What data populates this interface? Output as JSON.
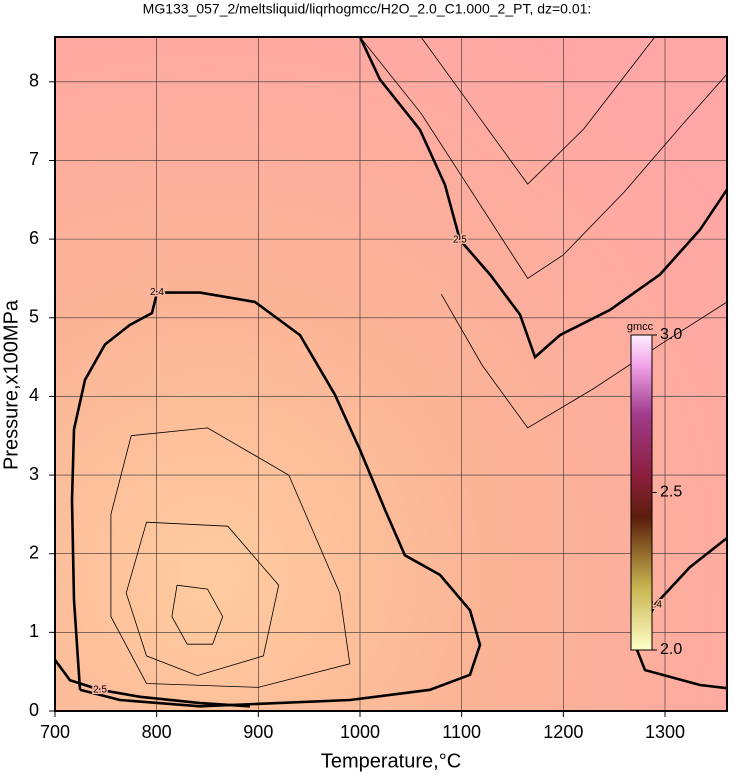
{
  "chart_data": {
    "type": "contour",
    "title": "MG133_057_2/meltsliquid/liqrhogmcc/H2O_2.0_C1.000_2_PT, dz=0.01:",
    "x_label": "Temperature,°C",
    "y_label": "Pressure,x100MPa",
    "xlim": [
      700,
      1361
    ],
    "ylim": [
      0,
      8.57
    ],
    "xticks": [
      700,
      800,
      900,
      1000,
      1100,
      1200,
      1300
    ],
    "yticks": [
      0,
      1,
      2,
      3,
      4,
      5,
      6,
      7,
      8
    ],
    "grid": true,
    "contours": [
      {
        "level": 2.4,
        "bold": true,
        "x": [
          724.6,
          718.7,
          716.7,
          718.7,
          729.5,
          749.2,
          773.8,
          795.4,
          800.3,
          842.6,
          896.7,
          941.0,
          975.4,
          1000,
          1024.6,
          1044.2,
          1078.7,
          1108.2,
          1118.0,
          1108.2,
          1068.8,
          990.2,
          842.6,
          763.9,
          724.6
        ],
        "y": [
          0.27,
          1.41,
          2.68,
          3.58,
          4.21,
          4.66,
          4.91,
          5.06,
          5.32,
          5.32,
          5.2,
          4.78,
          4.02,
          3.32,
          2.56,
          1.98,
          1.73,
          1.28,
          0.84,
          0.46,
          0.27,
          0.14,
          0.06,
          0.14,
          0.27
        ]
      },
      {
        "level": 2.5,
        "bold": true,
        "x": [
          1000,
          1019.7,
          1059,
          1083.6,
          1098.3,
          1127.9,
          1157.4,
          1172.1,
          1196.7,
          1245.9,
          1295.1,
          1334.4,
          1361
        ],
        "y": [
          8.57,
          8.03,
          7.39,
          6.69,
          5.99,
          5.55,
          5.04,
          4.5,
          4.78,
          5.1,
          5.55,
          6.12,
          6.63
        ]
      },
      {
        "level": 2.4,
        "bold": true,
        "x": [
          1361,
          1324.6,
          1290.2,
          1270.5,
          1280.3,
          1334.4,
          1361
        ],
        "y": [
          2.2,
          1.83,
          1.35,
          0.84,
          0.52,
          0.33,
          0.29
        ]
      },
      {
        "level": 2.5,
        "bold": true,
        "x": [
          700,
          714.8,
          744.3,
          783.7,
          842.6,
          891.8
        ],
        "y": [
          0.65,
          0.39,
          0.27,
          0.18,
          0.1,
          0.06
        ]
      },
      {
        "bold": false,
        "x": [
          820,
          850,
          865,
          855,
          830,
          815,
          820
        ],
        "y": [
          1.6,
          1.55,
          1.2,
          0.85,
          0.85,
          1.2,
          1.6
        ]
      },
      {
        "bold": false,
        "x": [
          790,
          870,
          920,
          905,
          840,
          790,
          770,
          790
        ],
        "y": [
          2.4,
          2.35,
          1.6,
          0.7,
          0.45,
          0.7,
          1.5,
          2.4
        ]
      },
      {
        "bold": false,
        "x": [
          775,
          850,
          930,
          980,
          990,
          900,
          790,
          755,
          755,
          775
        ],
        "y": [
          3.5,
          3.6,
          3.0,
          1.5,
          0.6,
          0.3,
          0.35,
          1.2,
          2.5,
          3.5
        ]
      },
      {
        "bold": false,
        "x": [
          1000,
          1060,
          1100,
          1140,
          1165,
          1200,
          1260,
          1320,
          1361
        ],
        "y": [
          8.57,
          7.6,
          6.8,
          6.0,
          5.5,
          5.8,
          6.6,
          7.5,
          8.1
        ]
      },
      {
        "bold": false,
        "x": [
          1060,
          1120,
          1165,
          1220,
          1290
        ],
        "y": [
          8.57,
          7.5,
          6.7,
          7.4,
          8.57
        ]
      },
      {
        "bold": false,
        "x": [
          1080,
          1120,
          1165,
          1230,
          1300,
          1361
        ],
        "y": [
          5.3,
          4.4,
          3.6,
          4.1,
          4.7,
          5.2
        ]
      }
    ],
    "colorbar": {
      "label": "gmcc",
      "lim": [
        2.0,
        3.0
      ],
      "ticks": [
        {
          "value": 2.0,
          "label": "2.0"
        },
        2.5,
        {
          "value": 3.0,
          "label": "3.0"
        }
      ]
    }
  }
}
